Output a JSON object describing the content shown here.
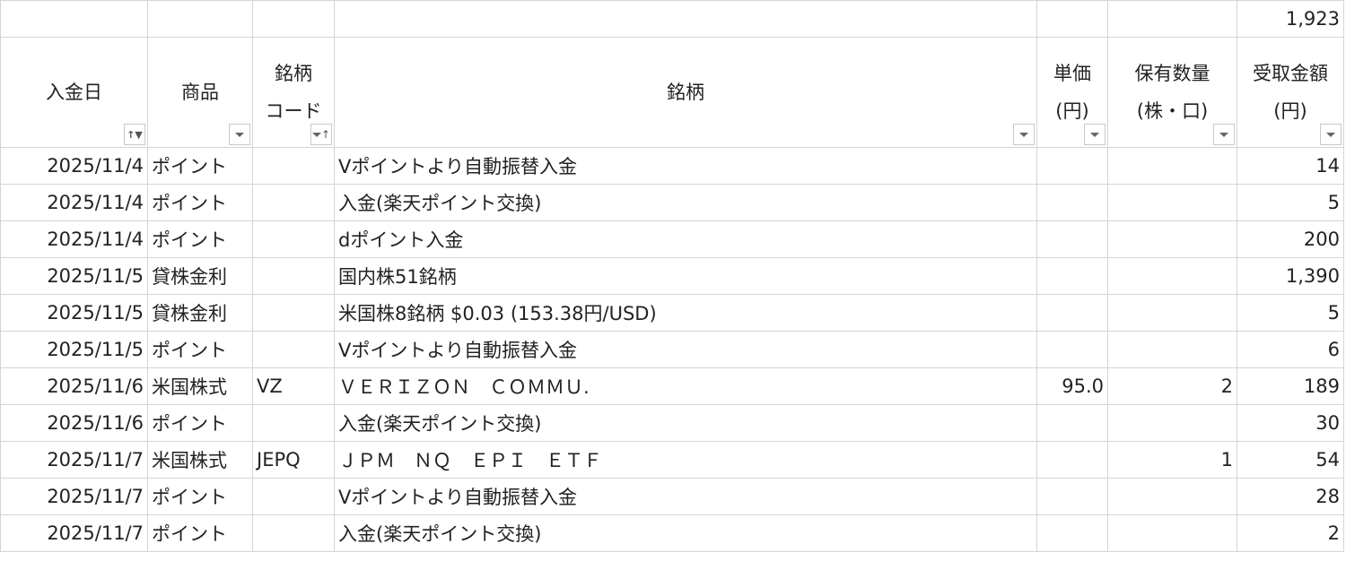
{
  "total_row": {
    "amount": "1,923"
  },
  "headers": [
    {
      "label": "入金日",
      "filter_icon": "sort-asc-filter-icon"
    },
    {
      "label": "商品",
      "filter_icon": "dropdown-icon"
    },
    {
      "label": "銘柄\nコード",
      "filter_icon": "sort-asc-icon"
    },
    {
      "label": "銘柄",
      "filter_icon": "dropdown-icon"
    },
    {
      "label": "単価\n(円)",
      "filter_icon": "dropdown-icon"
    },
    {
      "label": "保有数量\n(株・口)",
      "filter_icon": "dropdown-icon"
    },
    {
      "label": "受取金額\n(円)",
      "filter_icon": "dropdown-icon"
    }
  ],
  "rows": [
    {
      "date": "2025/11/4",
      "product": "ポイント",
      "code": "",
      "name": "Vポイントより自動振替入金",
      "price": "",
      "qty": "",
      "amount": "14"
    },
    {
      "date": "2025/11/4",
      "product": "ポイント",
      "code": "",
      "name": "入金(楽天ポイント交換)",
      "price": "",
      "qty": "",
      "amount": "5"
    },
    {
      "date": "2025/11/4",
      "product": "ポイント",
      "code": "",
      "name": "dポイント入金",
      "price": "",
      "qty": "",
      "amount": "200"
    },
    {
      "date": "2025/11/5",
      "product": "貸株金利",
      "code": "",
      "name": "国内株51銘柄",
      "price": "",
      "qty": "",
      "amount": "1,390"
    },
    {
      "date": "2025/11/5",
      "product": "貸株金利",
      "code": "",
      "name": "米国株8銘柄 $0.03 (153.38円/USD)",
      "price": "",
      "qty": "",
      "amount": "5"
    },
    {
      "date": "2025/11/5",
      "product": "ポイント",
      "code": "",
      "name": "Vポイントより自動振替入金",
      "price": "",
      "qty": "",
      "amount": "6"
    },
    {
      "date": "2025/11/6",
      "product": "米国株式",
      "code": "VZ",
      "name": "ＶＥＲＩＺＯＮ　ＣＯＭＭＵ.",
      "price": "95.0",
      "qty": "2",
      "amount": "189"
    },
    {
      "date": "2025/11/6",
      "product": "ポイント",
      "code": "",
      "name": "入金(楽天ポイント交換)",
      "price": "",
      "qty": "",
      "amount": "30"
    },
    {
      "date": "2025/11/7",
      "product": "米国株式",
      "code": "JEPQ",
      "name": "ＪＰＭ　ＮＱ　ＥＰＩ　ＥＴＦ",
      "price": "",
      "qty": "1",
      "amount": "54"
    },
    {
      "date": "2025/11/7",
      "product": "ポイント",
      "code": "",
      "name": "Vポイントより自動振替入金",
      "price": "",
      "qty": "",
      "amount": "28"
    },
    {
      "date": "2025/11/7",
      "product": "ポイント",
      "code": "",
      "name": "入金(楽天ポイント交換)",
      "price": "",
      "qty": "",
      "amount": "2"
    }
  ]
}
